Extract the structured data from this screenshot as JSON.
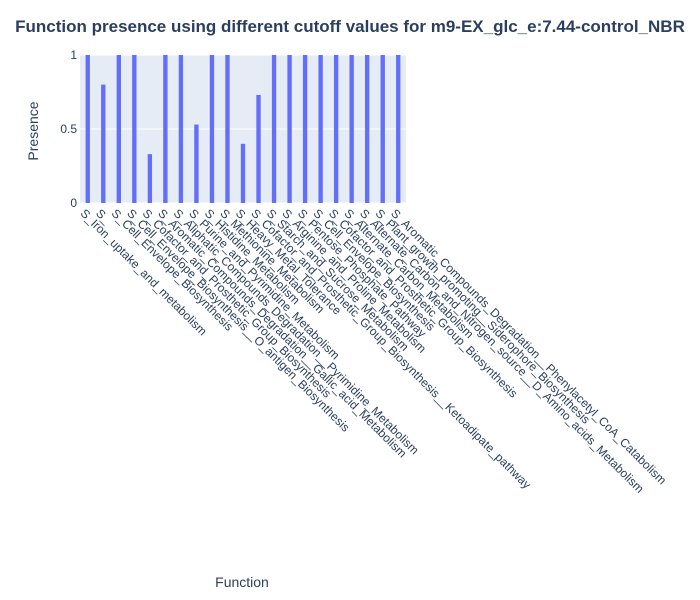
{
  "chart_data": {
    "type": "bar",
    "title": "Function presence using different cutoff values for m9-EX_glc_e:7.44-control_NBR",
    "xlabel": "Function",
    "ylabel": "Presence",
    "ylim": [
      0,
      1
    ],
    "yticks": [
      "0",
      "0.5",
      "1"
    ],
    "grid": true,
    "colors": {
      "bar": "#636efa",
      "plot_bg": "#e5ecf6",
      "grid": "#ffffff",
      "text": "#2a3f5f"
    },
    "categories": [
      "S_Iron_uptake_and_metabolism",
      "S_",
      "S_Cell_Envelope_Biosynthesis",
      "S_Cell_Envelope_Biosynthesis__O_antigen_Biosynthesis",
      "S_Cofactor_and_Prosthetic_Group_Biosynthesis",
      "S_Aromatic_Compounds_Degradation__Gallic_acid_Metabolism",
      "S_Aliphatic_Compounds_Degradation__Pyrimidine_Metabolism",
      "S_Purine_and_Pyrimidine_Metabolism",
      "S_Histidine_Metabolism",
      "S_Methionine_Metabolism",
      "S_Heavy_Metal_Tolerance",
      "S_Cofactor_and_Prosthetic_Group_Biosynthesis__Ketoadipate_pathway",
      "S_Starch_and_Sucrose_Metabolism",
      "S_Arginine_and_Proline_Metabolism",
      "S_Pentose_Phosphate_Pathway",
      "S_Cell_Envelope_Biosynthesis",
      "S_Cofactor_and_Prosthetic_Group_Biosynthesis",
      "S_Alternate_Carbon_Metabolism",
      "S_Alternate_Carbon_and_Nitrogen_source__D_Amino_acids_Metabolism",
      "S_Plant_growth_promoting__Siderophore_Biosynthesis",
      "S_Aromatic_Compounds_Degradation__Phenylacetyl_CoA_Catabolism"
    ],
    "values": [
      1,
      0.8,
      1,
      1,
      0.33,
      1,
      1,
      0.53,
      1,
      1,
      0.4,
      0.73,
      1,
      1,
      1,
      1,
      1,
      1,
      1,
      1,
      1
    ]
  }
}
